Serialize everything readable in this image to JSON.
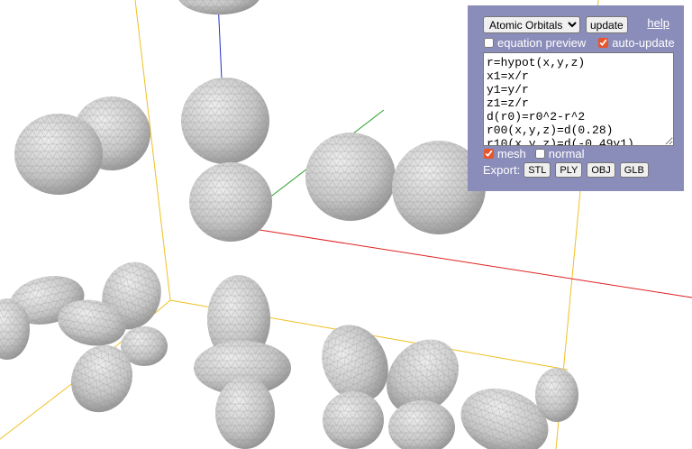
{
  "panel": {
    "preset_selected": "Atomic Orbitals",
    "update_label": "update",
    "help_label": "help",
    "equation_preview_label": "equation preview",
    "equation_preview_checked": false,
    "auto_update_label": "auto-update",
    "auto_update_checked": true,
    "equations": "r=hypot(x,y,z)\nx1=x/r\ny1=y/r\nz1=z/r\nd(r0)=r0^2-r^2\nr00(x,y,z)=d(0.28)\nr10(x,y,z)=d(-0.49y1)",
    "mesh_label": "mesh",
    "mesh_checked": true,
    "normal_label": "normal",
    "normal_checked": false,
    "export_label": "Export:",
    "export_formats": [
      "STL",
      "PLY",
      "OBJ",
      "GLB"
    ]
  },
  "colors": {
    "panel_bg": "#8a8db9",
    "accent_check": "#e8542b",
    "axis_x": "#e02020",
    "axis_y": "#2a9d2a",
    "axis_z": "#2030c0",
    "bounding_box": "#f0c020",
    "surface": "#c8c8c8",
    "mesh_lines": "#888888"
  }
}
